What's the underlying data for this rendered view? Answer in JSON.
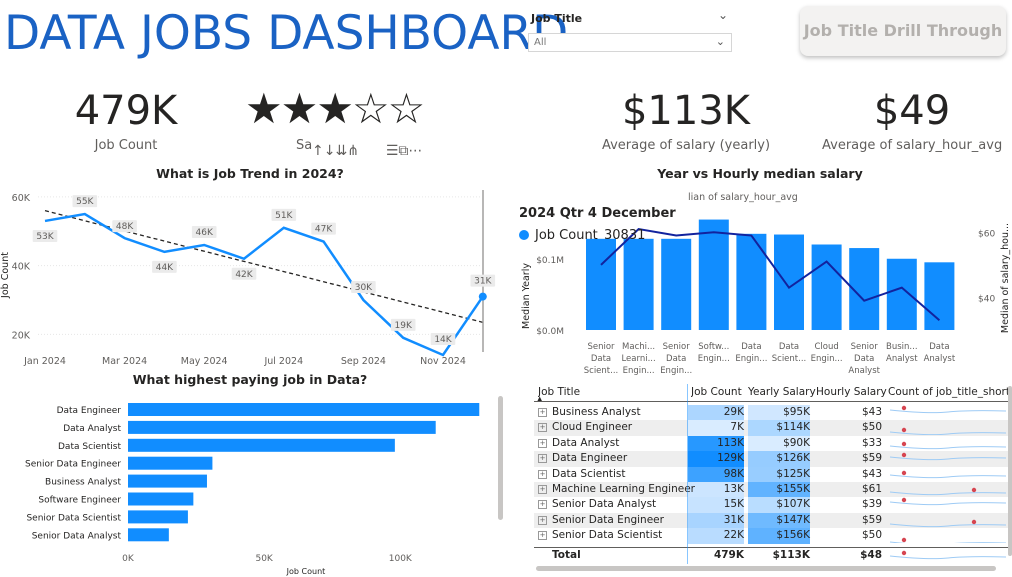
{
  "header": {
    "title": "DATA JOBS DASHBOARD",
    "filter_label": "Job Title",
    "filter_value": "All",
    "drill_button": "Job Title Drill Through"
  },
  "kpis": {
    "job_count": {
      "value": "479K",
      "label": "Job Count"
    },
    "rating": {
      "stars_filled": 3,
      "stars_total": 5,
      "label": "Sa"
    },
    "salary_year": {
      "value": "$113K",
      "label": "Average of salary (yearly)"
    },
    "salary_hour": {
      "value": "$49",
      "label": "Average of salary_hour_avg"
    }
  },
  "icons": [
    "arrow-up-icon",
    "arrow-down-icon",
    "double-arrow-down-icon",
    "fork-arrow-icon",
    "filter-icon",
    "focus-mode-icon",
    "more-options-icon"
  ],
  "colors": {
    "accent": "#118dff",
    "title": "#1a62c4",
    "dark_line": "#12239e"
  },
  "chart_data": [
    {
      "type": "line",
      "title": "What is Job Trend in 2024?",
      "ylabel": "Job Count",
      "x": [
        "Jan 2024",
        "Feb 2024",
        "Mar 2024",
        "Apr 2024",
        "May 2024",
        "Jun 2024",
        "Jul 2024",
        "Aug 2024",
        "Sep 2024",
        "Oct 2024",
        "Nov 2024",
        "Dec 2024"
      ],
      "xticks": [
        "Jan 2024",
        "Mar 2024",
        "May 2024",
        "Jul 2024",
        "Sep 2024",
        "Nov 2024"
      ],
      "yticks": [
        "20K",
        "40K",
        "60K"
      ],
      "ylim": [
        14000,
        62000
      ],
      "series": [
        {
          "name": "Job Count",
          "values": [
            53000,
            55000,
            48000,
            44000,
            46000,
            42000,
            51000,
            47000,
            30000,
            19000,
            14000,
            31000
          ]
        }
      ],
      "labels": [
        "53K",
        "55K",
        "48K",
        "44K",
        "46K",
        "42K",
        "51K",
        "47K",
        "30K",
        "19K",
        "14K",
        "31K"
      ],
      "trendline": [
        56000,
        23500
      ],
      "tooltip": {
        "date": "2024 Qtr 4 December",
        "name": "Job Count",
        "value": "30831"
      }
    },
    {
      "type": "bar",
      "title": "Year vs Hourly median salary",
      "legend_text": "lian of salary_hour_avg",
      "ylabel": "Median Yearly",
      "y2label": "Median of salary_hou...",
      "yticks": [
        "$0.0M",
        "$0.1M"
      ],
      "y2ticks": [
        "$40",
        "$60"
      ],
      "categories": [
        "Senior Data Scient...",
        "Machi... Learni... Engin...",
        "Senior Data Engin...",
        "Softw... Engin...",
        "Data Engin...",
        "Data Scient...",
        "Cloud Engin...",
        "Senior Data Analyst",
        "Busin... Analyst",
        "Data Analyst"
      ],
      "ylim": [
        0,
        160000
      ],
      "series": [
        {
          "name": "Median Yearly",
          "values": [
            128000,
            128000,
            128000,
            155000,
            135000,
            134000,
            120000,
            115000,
            100000,
            95000
          ]
        },
        {
          "name": "Median of salary_hour_avg",
          "values": [
            50,
            61,
            59,
            60,
            59,
            43,
            51,
            39,
            43,
            33
          ]
        }
      ],
      "y2lim": [
        30,
        65
      ]
    },
    {
      "type": "bar",
      "orientation": "horizontal",
      "title": "What highest paying job in Data?",
      "xlabel": "Job Count",
      "xticks": [
        "0K",
        "50K",
        "100K"
      ],
      "xlim": [
        0,
        130000
      ],
      "categories": [
        "Data Engineer",
        "Data Analyst",
        "Data Scientist",
        "Senior Data Engineer",
        "Business Analyst",
        "Software Engineer",
        "Senior Data Scientist",
        "Senior Data Analyst"
      ],
      "values": [
        129000,
        113000,
        98000,
        31000,
        29000,
        24000,
        22000,
        15000
      ]
    },
    {
      "type": "table",
      "columns": [
        "Job Title",
        "Job Count",
        "Yearly Salary",
        "Hourly Salary",
        "Count of job_title_short b"
      ],
      "rows": [
        {
          "title": "Business Analyst",
          "count": "29K",
          "yearly": "$95K",
          "hourly": "$43",
          "c": 29,
          "y": 95
        },
        {
          "title": "Cloud Engineer",
          "count": "7K",
          "yearly": "$114K",
          "hourly": "$50",
          "c": 7,
          "y": 114
        },
        {
          "title": "Data Analyst",
          "count": "113K",
          "yearly": "$90K",
          "hourly": "$33",
          "c": 113,
          "y": 90
        },
        {
          "title": "Data Engineer",
          "count": "129K",
          "yearly": "$126K",
          "hourly": "$59",
          "c": 129,
          "y": 126
        },
        {
          "title": "Data Scientist",
          "count": "98K",
          "yearly": "$125K",
          "hourly": "$43",
          "c": 98,
          "y": 125
        },
        {
          "title": "Machine Learning Engineer",
          "count": "13K",
          "yearly": "$155K",
          "hourly": "$61",
          "c": 13,
          "y": 155
        },
        {
          "title": "Senior Data Analyst",
          "count": "15K",
          "yearly": "$107K",
          "hourly": "$39",
          "c": 15,
          "y": 107
        },
        {
          "title": "Senior Data Engineer",
          "count": "31K",
          "yearly": "$147K",
          "hourly": "$59",
          "c": 31,
          "y": 147
        },
        {
          "title": "Senior Data Scientist",
          "count": "22K",
          "yearly": "$156K",
          "hourly": "$50",
          "c": 22,
          "y": 156
        }
      ],
      "total": {
        "title": "Total",
        "count": "479K",
        "yearly": "$113K",
        "hourly": "$48"
      }
    }
  ]
}
